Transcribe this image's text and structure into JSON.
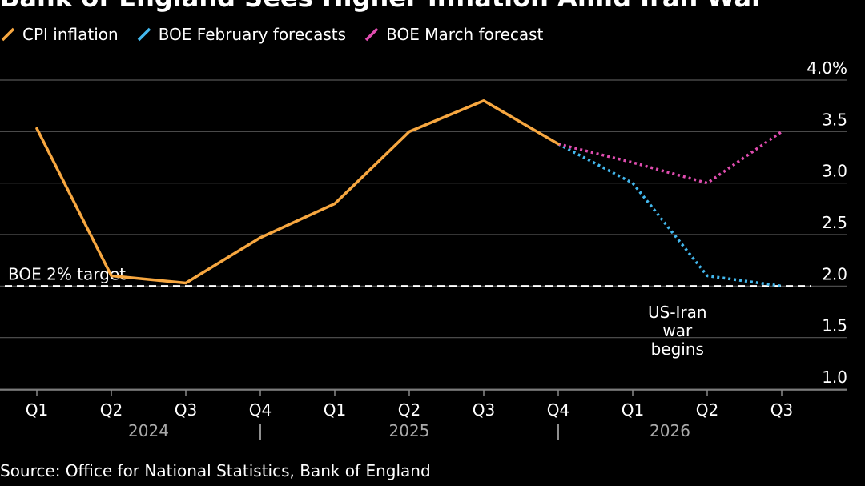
{
  "title": "Bank of England Sees Higher Inflation Amid Iran War",
  "source": "Source: Office for National Statistics, Bank of England",
  "colors": {
    "cpi": "#f7a740",
    "feb": "#43b8ee",
    "mar": "#e04db0",
    "grid": "#555555",
    "target": "#ffffff"
  },
  "chart_data": {
    "type": "line",
    "title": "Bank of England Sees Higher Inflation Amid Iran War",
    "categories": [
      "Q1",
      "Q2",
      "Q3",
      "Q4",
      "Q1",
      "Q2",
      "Q3",
      "Q4",
      "Q1",
      "Q2",
      "Q3"
    ],
    "years": [
      "2024",
      "2025",
      "2026"
    ],
    "year_separators": [
      "|",
      "|"
    ],
    "ylim": [
      1.0,
      4.0
    ],
    "yticks": [
      1.0,
      1.5,
      2.0,
      2.5,
      3.0,
      3.5,
      4.0
    ],
    "ytick_labels": [
      "1.0",
      "1.5",
      "2.0",
      "2.5",
      "3.0",
      "3.5",
      "4.0%"
    ],
    "series": [
      {
        "name": "CPI inflation",
        "style": "solid",
        "values": [
          3.53,
          2.1,
          2.03,
          2.47,
          2.8,
          3.5,
          3.8,
          3.38,
          null,
          null,
          null
        ]
      },
      {
        "name": "BOE February forecasts",
        "style": "dotted",
        "values": [
          null,
          null,
          null,
          null,
          null,
          null,
          null,
          3.38,
          3.0,
          2.1,
          2.0
        ]
      },
      {
        "name": "BOE March forecast",
        "style": "dotted",
        "values": [
          null,
          null,
          null,
          null,
          null,
          null,
          null,
          3.38,
          3.2,
          3.0,
          3.5
        ]
      }
    ],
    "reference_line": {
      "label": "BOE 2% target",
      "value": 2.0
    },
    "annotation": {
      "lines": [
        "US-Iran",
        "war",
        "begins"
      ]
    }
  }
}
